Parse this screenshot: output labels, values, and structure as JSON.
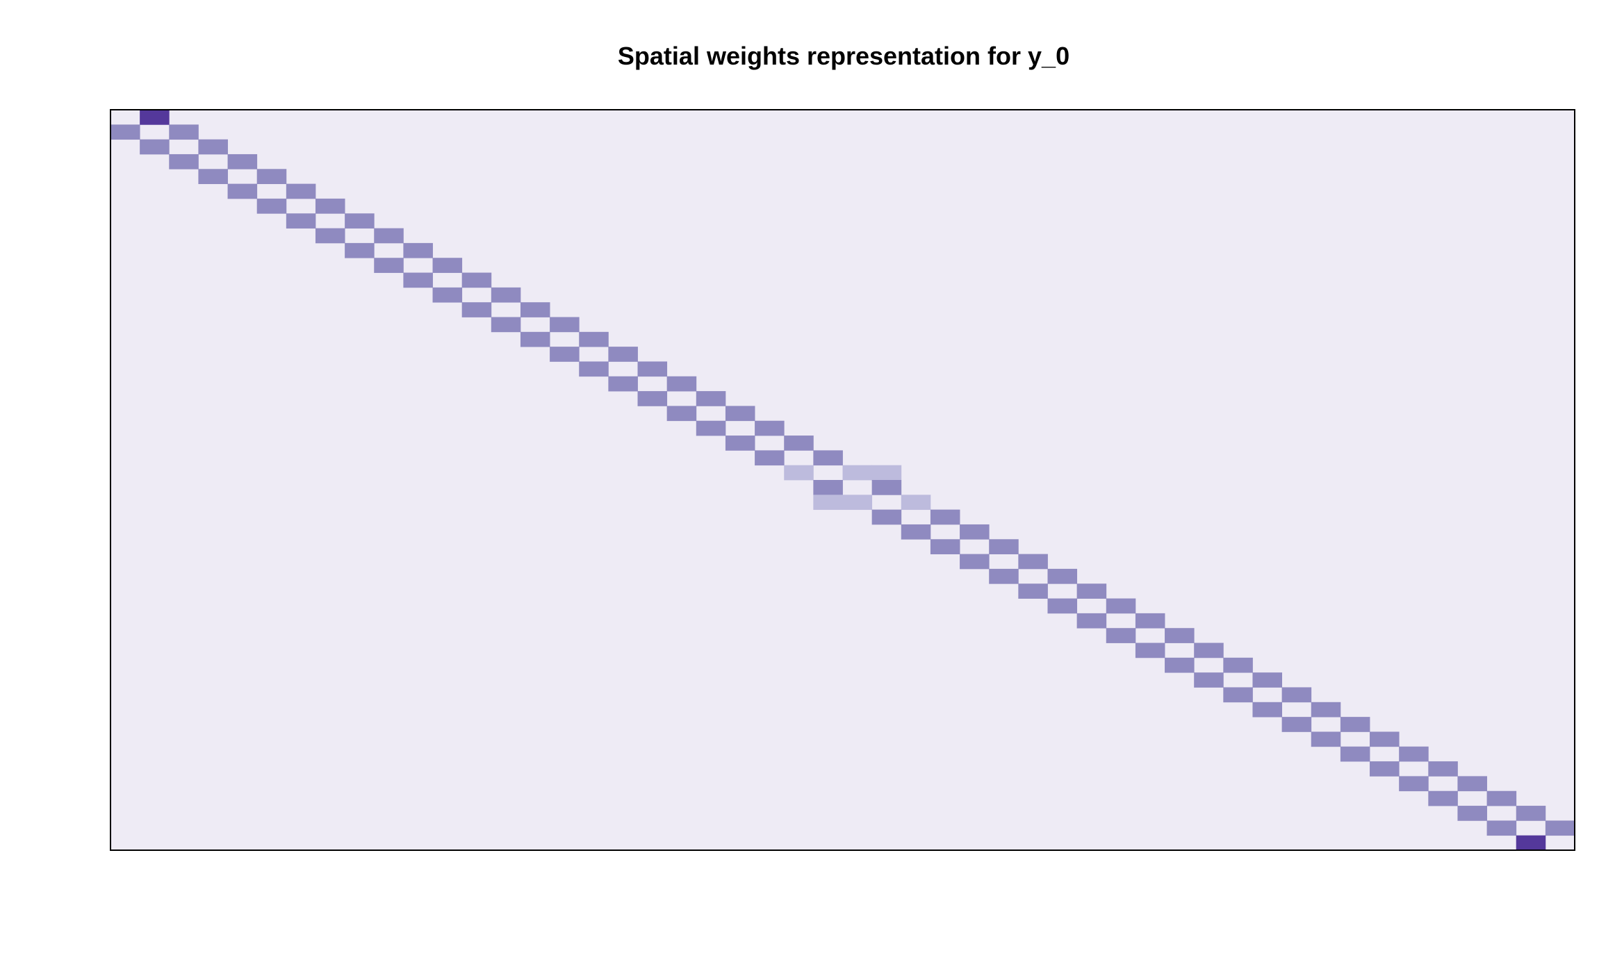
{
  "chart_data": {
    "type": "heatmap",
    "title": "Spatial weights representation for y_0",
    "xlabel": "",
    "ylabel": "",
    "n_rows": 50,
    "n_cols": 50,
    "background_value": 0,
    "value_range": [
      0,
      1
    ],
    "colors": {
      "background": "#EEEBF5",
      "strong": "#54389B",
      "medium": "#8F8AC0",
      "light": "#BDBBDD",
      "frame": "#000000",
      "title": "#000000"
    },
    "color_levels": [
      {
        "value": 1,
        "color": "#54389B"
      },
      {
        "value": 0.5,
        "color": "#8F8AC0"
      },
      {
        "value": 0.333,
        "color": "#BDBBDD"
      }
    ],
    "cells": [
      {
        "row": 0,
        "col": 1,
        "value": 1
      },
      {
        "row": 1,
        "col": 0,
        "value": 0.5
      },
      {
        "row": 1,
        "col": 2,
        "value": 0.5
      },
      {
        "row": 2,
        "col": 1,
        "value": 0.5
      },
      {
        "row": 2,
        "col": 3,
        "value": 0.5
      },
      {
        "row": 3,
        "col": 2,
        "value": 0.5
      },
      {
        "row": 3,
        "col": 4,
        "value": 0.5
      },
      {
        "row": 4,
        "col": 3,
        "value": 0.5
      },
      {
        "row": 4,
        "col": 5,
        "value": 0.5
      },
      {
        "row": 5,
        "col": 4,
        "value": 0.5
      },
      {
        "row": 5,
        "col": 6,
        "value": 0.5
      },
      {
        "row": 6,
        "col": 5,
        "value": 0.5
      },
      {
        "row": 6,
        "col": 7,
        "value": 0.5
      },
      {
        "row": 7,
        "col": 6,
        "value": 0.5
      },
      {
        "row": 7,
        "col": 8,
        "value": 0.5
      },
      {
        "row": 8,
        "col": 7,
        "value": 0.5
      },
      {
        "row": 8,
        "col": 9,
        "value": 0.5
      },
      {
        "row": 9,
        "col": 8,
        "value": 0.5
      },
      {
        "row": 9,
        "col": 10,
        "value": 0.5
      },
      {
        "row": 10,
        "col": 9,
        "value": 0.5
      },
      {
        "row": 10,
        "col": 11,
        "value": 0.5
      },
      {
        "row": 11,
        "col": 10,
        "value": 0.5
      },
      {
        "row": 11,
        "col": 12,
        "value": 0.5
      },
      {
        "row": 12,
        "col": 11,
        "value": 0.5
      },
      {
        "row": 12,
        "col": 13,
        "value": 0.5
      },
      {
        "row": 13,
        "col": 12,
        "value": 0.5
      },
      {
        "row": 13,
        "col": 14,
        "value": 0.5
      },
      {
        "row": 14,
        "col": 13,
        "value": 0.5
      },
      {
        "row": 14,
        "col": 15,
        "value": 0.5
      },
      {
        "row": 15,
        "col": 14,
        "value": 0.5
      },
      {
        "row": 15,
        "col": 16,
        "value": 0.5
      },
      {
        "row": 16,
        "col": 15,
        "value": 0.5
      },
      {
        "row": 16,
        "col": 17,
        "value": 0.5
      },
      {
        "row": 17,
        "col": 16,
        "value": 0.5
      },
      {
        "row": 17,
        "col": 18,
        "value": 0.5
      },
      {
        "row": 18,
        "col": 17,
        "value": 0.5
      },
      {
        "row": 18,
        "col": 19,
        "value": 0.5
      },
      {
        "row": 19,
        "col": 18,
        "value": 0.5
      },
      {
        "row": 19,
        "col": 20,
        "value": 0.5
      },
      {
        "row": 20,
        "col": 19,
        "value": 0.5
      },
      {
        "row": 20,
        "col": 21,
        "value": 0.5
      },
      {
        "row": 21,
        "col": 20,
        "value": 0.5
      },
      {
        "row": 21,
        "col": 22,
        "value": 0.5
      },
      {
        "row": 22,
        "col": 21,
        "value": 0.5
      },
      {
        "row": 22,
        "col": 23,
        "value": 0.5
      },
      {
        "row": 23,
        "col": 22,
        "value": 0.5
      },
      {
        "row": 23,
        "col": 24,
        "value": 0.5
      },
      {
        "row": 24,
        "col": 23,
        "value": 0.333
      },
      {
        "row": 24,
        "col": 25,
        "value": 0.333
      },
      {
        "row": 24,
        "col": 26,
        "value": 0.333
      },
      {
        "row": 25,
        "col": 24,
        "value": 0.5
      },
      {
        "row": 25,
        "col": 26,
        "value": 0.5
      },
      {
        "row": 26,
        "col": 24,
        "value": 0.333
      },
      {
        "row": 26,
        "col": 25,
        "value": 0.333
      },
      {
        "row": 26,
        "col": 27,
        "value": 0.333
      },
      {
        "row": 27,
        "col": 26,
        "value": 0.5
      },
      {
        "row": 27,
        "col": 28,
        "value": 0.5
      },
      {
        "row": 28,
        "col": 27,
        "value": 0.5
      },
      {
        "row": 28,
        "col": 29,
        "value": 0.5
      },
      {
        "row": 29,
        "col": 28,
        "value": 0.5
      },
      {
        "row": 29,
        "col": 30,
        "value": 0.5
      },
      {
        "row": 30,
        "col": 29,
        "value": 0.5
      },
      {
        "row": 30,
        "col": 31,
        "value": 0.5
      },
      {
        "row": 31,
        "col": 30,
        "value": 0.5
      },
      {
        "row": 31,
        "col": 32,
        "value": 0.5
      },
      {
        "row": 32,
        "col": 31,
        "value": 0.5
      },
      {
        "row": 32,
        "col": 33,
        "value": 0.5
      },
      {
        "row": 33,
        "col": 32,
        "value": 0.5
      },
      {
        "row": 33,
        "col": 34,
        "value": 0.5
      },
      {
        "row": 34,
        "col": 33,
        "value": 0.5
      },
      {
        "row": 34,
        "col": 35,
        "value": 0.5
      },
      {
        "row": 35,
        "col": 34,
        "value": 0.5
      },
      {
        "row": 35,
        "col": 36,
        "value": 0.5
      },
      {
        "row": 36,
        "col": 35,
        "value": 0.5
      },
      {
        "row": 36,
        "col": 37,
        "value": 0.5
      },
      {
        "row": 37,
        "col": 36,
        "value": 0.5
      },
      {
        "row": 37,
        "col": 38,
        "value": 0.5
      },
      {
        "row": 38,
        "col": 37,
        "value": 0.5
      },
      {
        "row": 38,
        "col": 39,
        "value": 0.5
      },
      {
        "row": 39,
        "col": 38,
        "value": 0.5
      },
      {
        "row": 39,
        "col": 40,
        "value": 0.5
      },
      {
        "row": 40,
        "col": 39,
        "value": 0.5
      },
      {
        "row": 40,
        "col": 41,
        "value": 0.5
      },
      {
        "row": 41,
        "col": 40,
        "value": 0.5
      },
      {
        "row": 41,
        "col": 42,
        "value": 0.5
      },
      {
        "row": 42,
        "col": 41,
        "value": 0.5
      },
      {
        "row": 42,
        "col": 43,
        "value": 0.5
      },
      {
        "row": 43,
        "col": 42,
        "value": 0.5
      },
      {
        "row": 43,
        "col": 44,
        "value": 0.5
      },
      {
        "row": 44,
        "col": 43,
        "value": 0.5
      },
      {
        "row": 44,
        "col": 45,
        "value": 0.5
      },
      {
        "row": 45,
        "col": 44,
        "value": 0.5
      },
      {
        "row": 45,
        "col": 46,
        "value": 0.5
      },
      {
        "row": 46,
        "col": 45,
        "value": 0.5
      },
      {
        "row": 46,
        "col": 47,
        "value": 0.5
      },
      {
        "row": 47,
        "col": 46,
        "value": 0.5
      },
      {
        "row": 47,
        "col": 48,
        "value": 0.5
      },
      {
        "row": 48,
        "col": 47,
        "value": 0.5
      },
      {
        "row": 48,
        "col": 49,
        "value": 0.5
      },
      {
        "row": 49,
        "col": 48,
        "value": 1
      }
    ],
    "grid": false,
    "legend": "none"
  }
}
